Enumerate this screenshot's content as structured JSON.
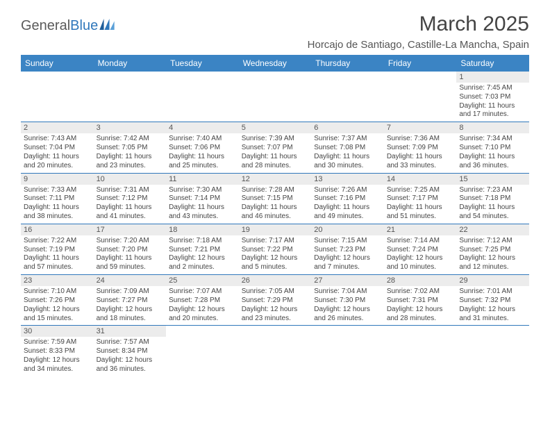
{
  "logo": {
    "textA": "General",
    "textB": "Blue"
  },
  "title": "March 2025",
  "location": "Horcajo de Santiago, Castille-La Mancha, Spain",
  "colors": {
    "header_bg": "#3b84c4",
    "header_text": "#ffffff",
    "border": "#2f77bb",
    "daynum_bg": "#ececec",
    "text": "#444444"
  },
  "weekdays": [
    "Sunday",
    "Monday",
    "Tuesday",
    "Wednesday",
    "Thursday",
    "Friday",
    "Saturday"
  ],
  "weeks": [
    [
      {
        "empty": true
      },
      {
        "empty": true
      },
      {
        "empty": true
      },
      {
        "empty": true
      },
      {
        "empty": true
      },
      {
        "empty": true
      },
      {
        "day": "1",
        "sunrise": "Sunrise: 7:45 AM",
        "sunset": "Sunset: 7:03 PM",
        "daylight": "Daylight: 11 hours and 17 minutes."
      }
    ],
    [
      {
        "day": "2",
        "sunrise": "Sunrise: 7:43 AM",
        "sunset": "Sunset: 7:04 PM",
        "daylight": "Daylight: 11 hours and 20 minutes."
      },
      {
        "day": "3",
        "sunrise": "Sunrise: 7:42 AM",
        "sunset": "Sunset: 7:05 PM",
        "daylight": "Daylight: 11 hours and 23 minutes."
      },
      {
        "day": "4",
        "sunrise": "Sunrise: 7:40 AM",
        "sunset": "Sunset: 7:06 PM",
        "daylight": "Daylight: 11 hours and 25 minutes."
      },
      {
        "day": "5",
        "sunrise": "Sunrise: 7:39 AM",
        "sunset": "Sunset: 7:07 PM",
        "daylight": "Daylight: 11 hours and 28 minutes."
      },
      {
        "day": "6",
        "sunrise": "Sunrise: 7:37 AM",
        "sunset": "Sunset: 7:08 PM",
        "daylight": "Daylight: 11 hours and 30 minutes."
      },
      {
        "day": "7",
        "sunrise": "Sunrise: 7:36 AM",
        "sunset": "Sunset: 7:09 PM",
        "daylight": "Daylight: 11 hours and 33 minutes."
      },
      {
        "day": "8",
        "sunrise": "Sunrise: 7:34 AM",
        "sunset": "Sunset: 7:10 PM",
        "daylight": "Daylight: 11 hours and 36 minutes."
      }
    ],
    [
      {
        "day": "9",
        "sunrise": "Sunrise: 7:33 AM",
        "sunset": "Sunset: 7:11 PM",
        "daylight": "Daylight: 11 hours and 38 minutes."
      },
      {
        "day": "10",
        "sunrise": "Sunrise: 7:31 AM",
        "sunset": "Sunset: 7:12 PM",
        "daylight": "Daylight: 11 hours and 41 minutes."
      },
      {
        "day": "11",
        "sunrise": "Sunrise: 7:30 AM",
        "sunset": "Sunset: 7:14 PM",
        "daylight": "Daylight: 11 hours and 43 minutes."
      },
      {
        "day": "12",
        "sunrise": "Sunrise: 7:28 AM",
        "sunset": "Sunset: 7:15 PM",
        "daylight": "Daylight: 11 hours and 46 minutes."
      },
      {
        "day": "13",
        "sunrise": "Sunrise: 7:26 AM",
        "sunset": "Sunset: 7:16 PM",
        "daylight": "Daylight: 11 hours and 49 minutes."
      },
      {
        "day": "14",
        "sunrise": "Sunrise: 7:25 AM",
        "sunset": "Sunset: 7:17 PM",
        "daylight": "Daylight: 11 hours and 51 minutes."
      },
      {
        "day": "15",
        "sunrise": "Sunrise: 7:23 AM",
        "sunset": "Sunset: 7:18 PM",
        "daylight": "Daylight: 11 hours and 54 minutes."
      }
    ],
    [
      {
        "day": "16",
        "sunrise": "Sunrise: 7:22 AM",
        "sunset": "Sunset: 7:19 PM",
        "daylight": "Daylight: 11 hours and 57 minutes."
      },
      {
        "day": "17",
        "sunrise": "Sunrise: 7:20 AM",
        "sunset": "Sunset: 7:20 PM",
        "daylight": "Daylight: 11 hours and 59 minutes."
      },
      {
        "day": "18",
        "sunrise": "Sunrise: 7:18 AM",
        "sunset": "Sunset: 7:21 PM",
        "daylight": "Daylight: 12 hours and 2 minutes."
      },
      {
        "day": "19",
        "sunrise": "Sunrise: 7:17 AM",
        "sunset": "Sunset: 7:22 PM",
        "daylight": "Daylight: 12 hours and 5 minutes."
      },
      {
        "day": "20",
        "sunrise": "Sunrise: 7:15 AM",
        "sunset": "Sunset: 7:23 PM",
        "daylight": "Daylight: 12 hours and 7 minutes."
      },
      {
        "day": "21",
        "sunrise": "Sunrise: 7:14 AM",
        "sunset": "Sunset: 7:24 PM",
        "daylight": "Daylight: 12 hours and 10 minutes."
      },
      {
        "day": "22",
        "sunrise": "Sunrise: 7:12 AM",
        "sunset": "Sunset: 7:25 PM",
        "daylight": "Daylight: 12 hours and 12 minutes."
      }
    ],
    [
      {
        "day": "23",
        "sunrise": "Sunrise: 7:10 AM",
        "sunset": "Sunset: 7:26 PM",
        "daylight": "Daylight: 12 hours and 15 minutes."
      },
      {
        "day": "24",
        "sunrise": "Sunrise: 7:09 AM",
        "sunset": "Sunset: 7:27 PM",
        "daylight": "Daylight: 12 hours and 18 minutes."
      },
      {
        "day": "25",
        "sunrise": "Sunrise: 7:07 AM",
        "sunset": "Sunset: 7:28 PM",
        "daylight": "Daylight: 12 hours and 20 minutes."
      },
      {
        "day": "26",
        "sunrise": "Sunrise: 7:05 AM",
        "sunset": "Sunset: 7:29 PM",
        "daylight": "Daylight: 12 hours and 23 minutes."
      },
      {
        "day": "27",
        "sunrise": "Sunrise: 7:04 AM",
        "sunset": "Sunset: 7:30 PM",
        "daylight": "Daylight: 12 hours and 26 minutes."
      },
      {
        "day": "28",
        "sunrise": "Sunrise: 7:02 AM",
        "sunset": "Sunset: 7:31 PM",
        "daylight": "Daylight: 12 hours and 28 minutes."
      },
      {
        "day": "29",
        "sunrise": "Sunrise: 7:01 AM",
        "sunset": "Sunset: 7:32 PM",
        "daylight": "Daylight: 12 hours and 31 minutes."
      }
    ],
    [
      {
        "day": "30",
        "sunrise": "Sunrise: 7:59 AM",
        "sunset": "Sunset: 8:33 PM",
        "daylight": "Daylight: 12 hours and 34 minutes."
      },
      {
        "day": "31",
        "sunrise": "Sunrise: 7:57 AM",
        "sunset": "Sunset: 8:34 PM",
        "daylight": "Daylight: 12 hours and 36 minutes."
      },
      {
        "empty": true
      },
      {
        "empty": true
      },
      {
        "empty": true
      },
      {
        "empty": true
      },
      {
        "empty": true
      }
    ]
  ]
}
